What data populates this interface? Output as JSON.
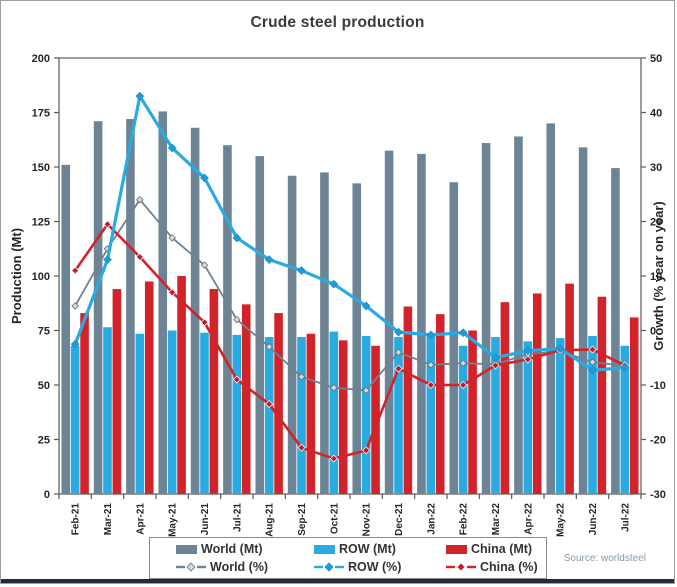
{
  "header": {
    "title": "Crude steel production"
  },
  "footer": {
    "source": "Source: worldsteel"
  },
  "colors": {
    "world_bar": "#6c8495",
    "row_bar": "#29abe2",
    "china_bar": "#d2232a",
    "world_line": "#6f8291",
    "row_line": "#29abe2",
    "china_line": "#d2232a",
    "axis": "#595959",
    "tick_text": "#262626",
    "bottom_strip": "#1f2c3d"
  },
  "chart_data": {
    "type": "bar",
    "subtype": "combo-bar-line-dual-axis",
    "title": "Crude steel production",
    "grid": false,
    "legend_position": "bottom",
    "categories": [
      "Feb-21",
      "Mar-21",
      "Apr-21",
      "May-21",
      "Jun-21",
      "Jul-21",
      "Aug-21",
      "Sep-21",
      "Oct-21",
      "Nov-21",
      "Dec-21",
      "Jan-22",
      "Feb-22",
      "Mar-22",
      "Apr-22",
      "May-22",
      "Jun-22",
      "Jul-22"
    ],
    "bar_series": [
      {
        "name": "World (Mt)",
        "axis": "left",
        "color": "#6c8495",
        "values": [
          151,
          171,
          172,
          175.5,
          168,
          160,
          155,
          146,
          147.5,
          142.5,
          157.5,
          156,
          143,
          161,
          164,
          170,
          159,
          149.5
        ]
      },
      {
        "name": "ROW (Mt)",
        "axis": "left",
        "color": "#29abe2",
        "values": [
          68,
          76.5,
          73.5,
          75,
          74,
          73,
          72,
          72,
          74.5,
          72.5,
          72,
          73,
          68,
          72,
          70,
          71.5,
          72.5,
          68
        ]
      },
      {
        "name": "China (Mt)",
        "axis": "left",
        "color": "#d2232a",
        "values": [
          83,
          94,
          97.5,
          100,
          94,
          87,
          83,
          73.5,
          70.5,
          68,
          86,
          82.5,
          75,
          88,
          92,
          96.5,
          90.5,
          81
        ]
      }
    ],
    "line_series": [
      {
        "name": "World (%)",
        "axis": "right",
        "color": "#6f8291",
        "marker_fill": "#d4dade",
        "marker_stroke": "#5f7280",
        "width": 1.8,
        "marker_r": 3.2,
        "values": [
          4.5,
          15,
          24,
          17,
          12,
          2,
          -3,
          -8.5,
          -10.5,
          -11,
          -4,
          -6.3,
          -6,
          -6.2,
          -4.3,
          -3.8,
          -5.8,
          -6.5
        ]
      },
      {
        "name": "China (%)",
        "axis": "right",
        "color": "#d2232a",
        "marker_fill": "#c21a27",
        "marker_stroke": "#f3f3f3",
        "width": 2.6,
        "marker_r": 3.5,
        "values": [
          11,
          19.5,
          13.5,
          7,
          1.5,
          -9,
          -13.5,
          -21.5,
          -23.5,
          -22,
          -7,
          -10,
          -10,
          -6.4,
          -5.3,
          -3.6,
          -3.5,
          -6.4
        ]
      },
      {
        "name": "ROW (%)",
        "axis": "right",
        "color": "#29abe2",
        "marker_fill": "#1f9cd8",
        "marker_stroke": "#1b8ec6",
        "width": 3.2,
        "marker_r": 3.8,
        "values": [
          -2.5,
          13,
          43,
          33.5,
          28,
          17,
          13,
          11,
          8.5,
          4.5,
          -0.3,
          -0.8,
          -0.4,
          -5,
          -3.7,
          -3.3,
          -7.3,
          -6.8
        ]
      }
    ],
    "left_axis": {
      "label": "Production (Mt)",
      "min": 0,
      "max": 200,
      "step": 25,
      "ticks": [
        0,
        25,
        50,
        75,
        100,
        125,
        150,
        175,
        200
      ]
    },
    "right_axis": {
      "label": "Growth (% year on year)",
      "min": -30,
      "max": 50,
      "step": 10,
      "ticks": [
        -30,
        -20,
        -10,
        0,
        10,
        20,
        30,
        40,
        50
      ]
    },
    "legend_order": [
      "World (Mt)",
      "ROW (Mt)",
      "China (Mt)",
      "World (%)",
      "ROW (%)",
      "China (%)"
    ]
  }
}
